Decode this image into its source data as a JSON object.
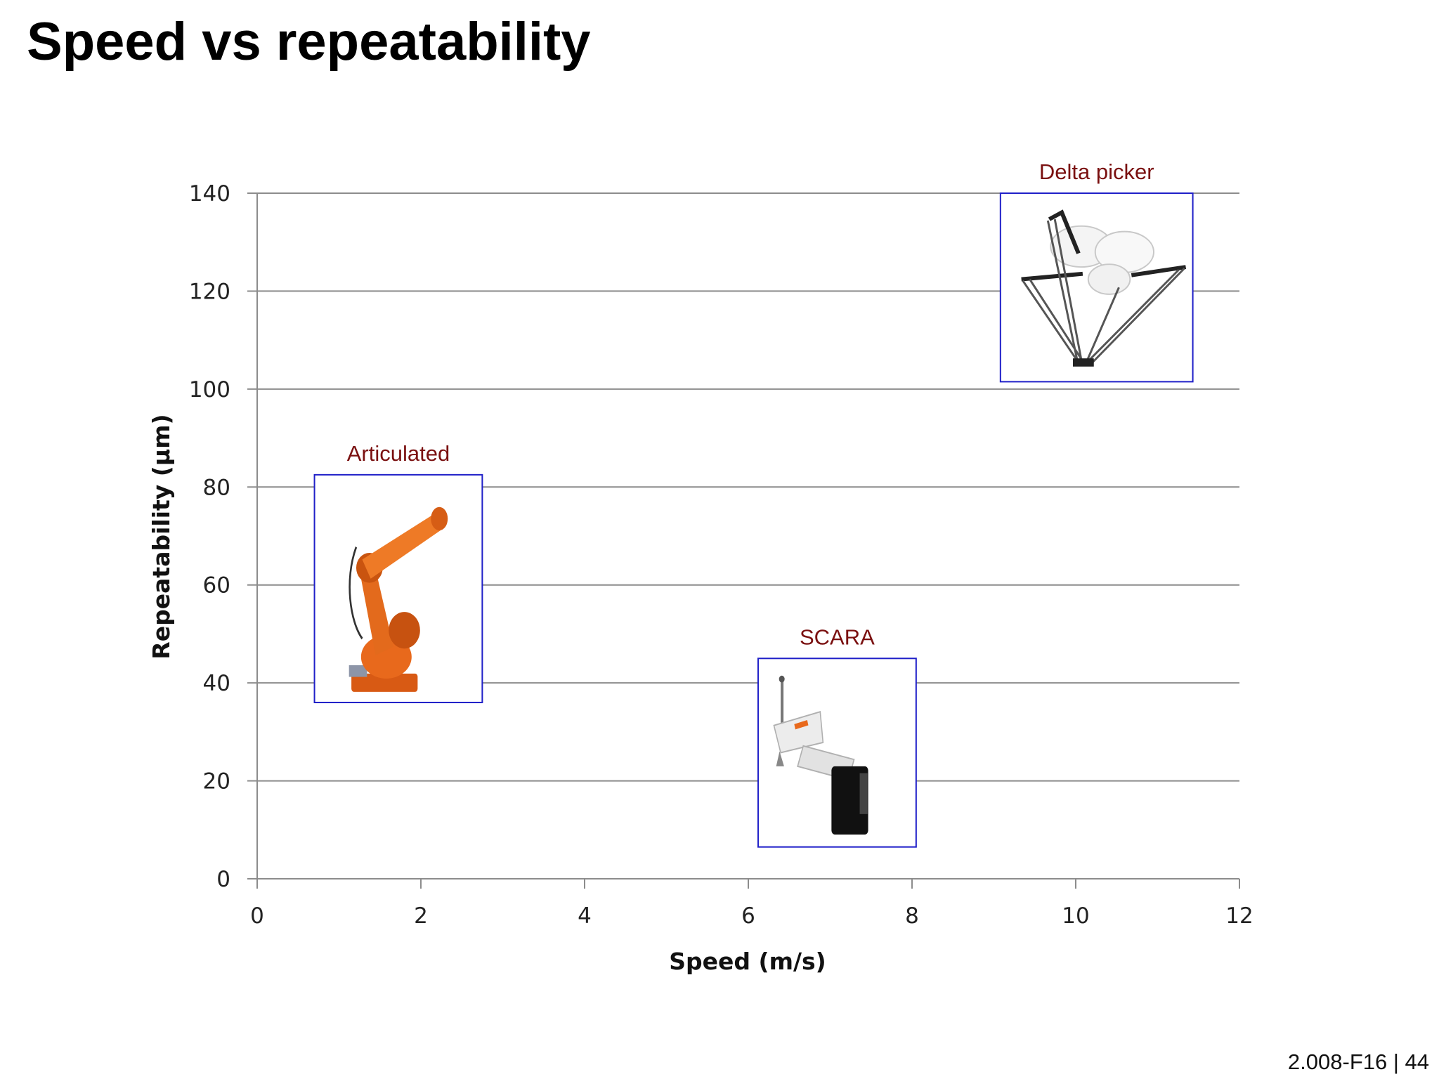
{
  "slide": {
    "title": "Speed vs repeatability",
    "footer": "2.008-F16 | 44"
  },
  "chart_data": {
    "type": "scatter",
    "title": "",
    "xlabel": "Speed (m/s)",
    "ylabel": "Repeatability (µm)",
    "xlim": [
      0,
      12
    ],
    "ylim": [
      0,
      140
    ],
    "xticks": [
      0,
      2,
      4,
      6,
      8,
      10,
      12
    ],
    "yticks": [
      0,
      20,
      40,
      60,
      80,
      100,
      120,
      140
    ],
    "grid": "horizontal",
    "legend": "none",
    "colors": {
      "gridline": "#8c8c8c",
      "box": "#1f1fc8",
      "label": "#7a1010"
    },
    "points": [
      {
        "label": "Articulated",
        "x": 1.7,
        "y": 59,
        "x_range": [
          0.7,
          2.75
        ],
        "y_range": [
          36,
          82.5
        ],
        "icon": "articulated-robot-icon"
      },
      {
        "label": "SCARA",
        "x": 7.1,
        "y": 26,
        "x_range": [
          6.12,
          8.05
        ],
        "y_range": [
          6.5,
          45
        ],
        "icon": "scara-robot-icon"
      },
      {
        "label": "Delta picker",
        "x": 10.25,
        "y": 120.5,
        "x_range": [
          9.08,
          11.43
        ],
        "y_range": [
          101.5,
          140
        ],
        "icon": "delta-robot-icon"
      }
    ]
  }
}
